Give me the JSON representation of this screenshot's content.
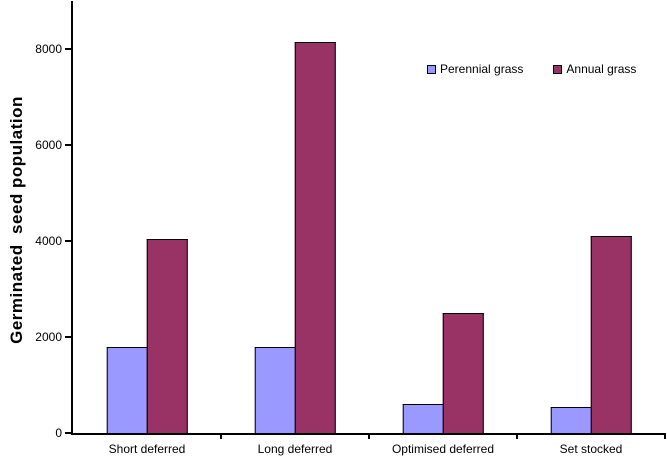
{
  "chart_data": {
    "type": "bar",
    "title": "",
    "xlabel": "",
    "ylabel": "Germinated  seed population",
    "categories": [
      "Short deferred",
      "Long deferred",
      "Optimised deferred",
      "Set stocked"
    ],
    "series": [
      {
        "name": "Perennial grass",
        "color": "#9999ff",
        "values": [
          1800,
          1800,
          600,
          550
        ]
      },
      {
        "name": "Annual grass",
        "color": "#993366",
        "values": [
          4050,
          8150,
          2500,
          4100
        ]
      }
    ],
    "ylim": [
      0,
      9000
    ],
    "yticks": [
      0,
      2000,
      4000,
      6000,
      8000
    ],
    "grid": false,
    "legend_position": "top-right",
    "bar_border_color": "#000000",
    "axis_color": "#000000",
    "background_color": "#ffffff"
  }
}
